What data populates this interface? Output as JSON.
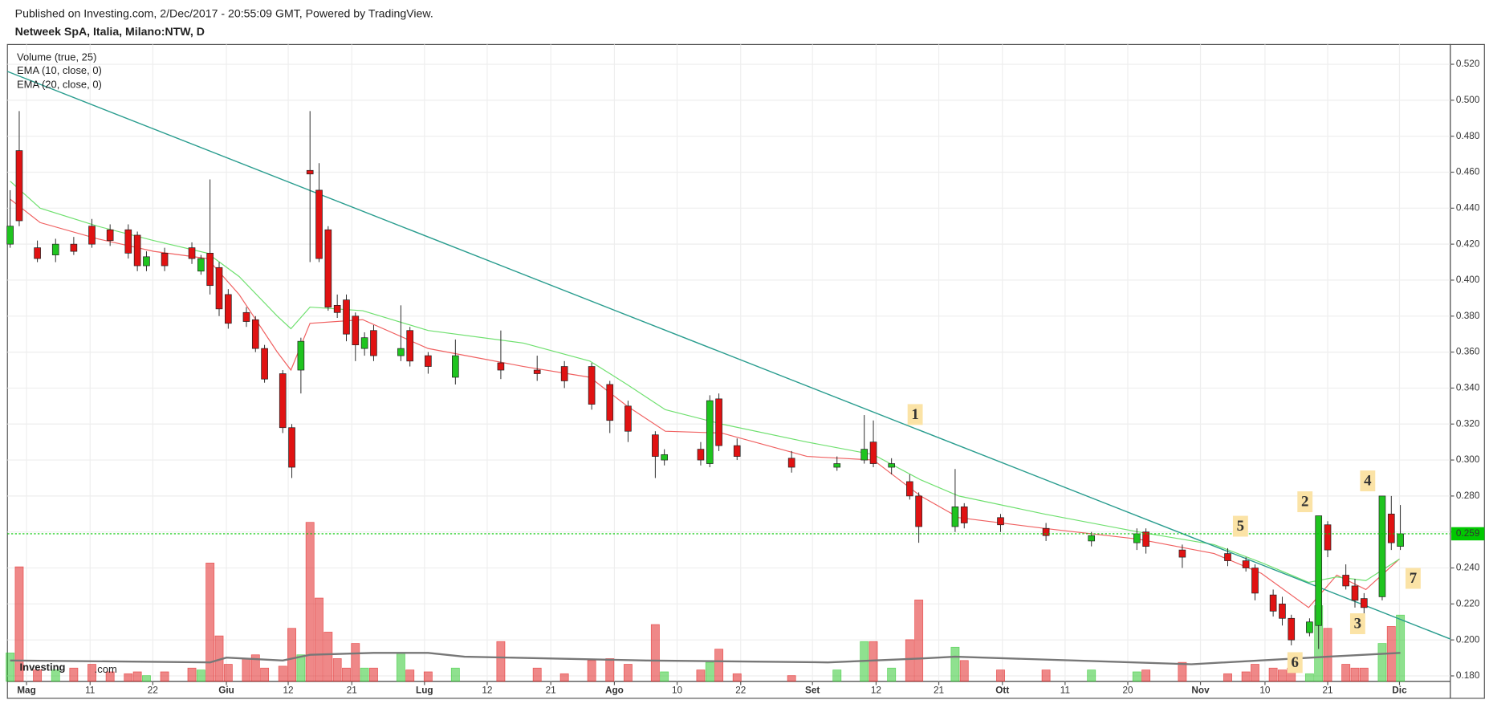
{
  "chart_data": {
    "type": "candlestick",
    "publisher_note": "Published on Investing.com, 2/Dec/2017 - 20:55:09 GMT, Powered by TradingView.",
    "title": "Netweek SpA, Italia, Milano:NTW, D",
    "logo": [
      "Investing",
      ".com"
    ],
    "up_color": "#1fc41f",
    "down_color": "#e01212",
    "grid": true,
    "xlim": [
      -0.3,
      158.5
    ],
    "ylim": [
      0.177,
      0.531
    ],
    "yticks": [
      {
        "value": 0.18,
        "label": "0.180"
      },
      {
        "value": 0.2,
        "label": "0.200"
      },
      {
        "value": 0.22,
        "label": "0.220"
      },
      {
        "value": 0.24,
        "label": "0.240"
      },
      {
        "value": 0.26,
        "label": "0.260"
      },
      {
        "value": 0.28,
        "label": "0.280"
      },
      {
        "value": 0.3,
        "label": "0.300"
      },
      {
        "value": 0.32,
        "label": "0.320"
      },
      {
        "value": 0.34,
        "label": "0.340"
      },
      {
        "value": 0.36,
        "label": "0.360"
      },
      {
        "value": 0.38,
        "label": "0.380"
      },
      {
        "value": 0.4,
        "label": "0.400"
      },
      {
        "value": 0.42,
        "label": "0.420"
      },
      {
        "value": 0.44,
        "label": "0.440"
      },
      {
        "value": 0.46,
        "label": "0.460"
      },
      {
        "value": 0.48,
        "label": "0.480"
      },
      {
        "value": 0.5,
        "label": "0.500"
      },
      {
        "value": 0.52,
        "label": "0.520"
      }
    ],
    "xticks": [
      {
        "value": 1.8,
        "label": "Mag"
      },
      {
        "value": 8.8,
        "label": "11"
      },
      {
        "value": 15.7,
        "label": "22"
      },
      {
        "value": 23.8,
        "label": "Giu"
      },
      {
        "value": 30.6,
        "label": "12"
      },
      {
        "value": 37.6,
        "label": "21"
      },
      {
        "value": 45.6,
        "label": "Lug"
      },
      {
        "value": 52.5,
        "label": "12"
      },
      {
        "value": 59.5,
        "label": "21"
      },
      {
        "value": 66.5,
        "label": "Ago"
      },
      {
        "value": 73.4,
        "label": "10"
      },
      {
        "value": 80.4,
        "label": "22"
      },
      {
        "value": 88.3,
        "label": "Set"
      },
      {
        "value": 95.3,
        "label": "12"
      },
      {
        "value": 102.2,
        "label": "21"
      },
      {
        "value": 109.2,
        "label": "Ott"
      },
      {
        "value": 116.1,
        "label": "11"
      },
      {
        "value": 123,
        "label": "20"
      },
      {
        "value": 131,
        "label": "Nov"
      },
      {
        "value": 138.1,
        "label": "10"
      },
      {
        "value": 145,
        "label": "21"
      },
      {
        "value": 152.9,
        "label": "Dic"
      }
    ],
    "x": [
      0,
      1,
      3,
      5,
      7,
      9,
      11,
      13,
      14,
      15,
      17,
      20,
      21,
      22,
      23,
      24,
      26,
      27,
      28,
      30,
      31,
      32,
      33,
      34,
      35,
      36,
      37,
      38,
      39,
      40,
      43,
      44,
      46,
      49,
      54,
      58,
      61,
      64,
      66,
      68,
      71,
      72,
      76,
      77,
      78,
      80,
      86,
      91,
      94,
      95,
      97,
      99,
      100,
      104,
      105,
      109,
      114,
      119,
      124,
      125,
      129,
      134,
      136,
      137,
      139,
      140,
      141,
      143,
      144,
      145,
      147,
      148,
      149,
      151,
      152,
      153
    ],
    "open": [
      0.42,
      0.472,
      0.418,
      0.414,
      0.42,
      0.43,
      0.428,
      0.428,
      0.425,
      0.408,
      0.415,
      0.418,
      0.405,
      0.415,
      0.407,
      0.392,
      0.382,
      0.378,
      0.362,
      0.348,
      0.318,
      0.35,
      0.461,
      0.45,
      0.428,
      0.386,
      0.389,
      0.38,
      0.362,
      0.372,
      0.358,
      0.372,
      0.358,
      0.346,
      0.354,
      0.35,
      0.352,
      0.352,
      0.342,
      0.33,
      0.314,
      0.3,
      0.306,
      0.298,
      0.334,
      0.308,
      0.301,
      0.296,
      0.3,
      0.31,
      0.296,
      0.288,
      0.28,
      0.263,
      0.274,
      0.268,
      0.262,
      0.255,
      0.254,
      0.26,
      0.25,
      0.248,
      0.244,
      0.24,
      0.225,
      0.22,
      0.212,
      0.204,
      0.208,
      0.264,
      0.236,
      0.23,
      0.223,
      0.224,
      0.27,
      0.252
    ],
    "high": [
      0.45,
      0.494,
      0.422,
      0.423,
      0.424,
      0.434,
      0.431,
      0.431,
      0.427,
      0.416,
      0.418,
      0.421,
      0.414,
      0.456,
      0.41,
      0.395,
      0.385,
      0.38,
      0.364,
      0.35,
      0.32,
      0.368,
      0.494,
      0.465,
      0.43,
      0.392,
      0.392,
      0.382,
      0.371,
      0.375,
      0.386,
      0.374,
      0.36,
      0.367,
      0.372,
      0.358,
      0.355,
      0.354,
      0.344,
      0.333,
      0.316,
      0.306,
      0.31,
      0.336,
      0.337,
      0.312,
      0.305,
      0.302,
      0.325,
      0.322,
      0.301,
      0.292,
      0.282,
      0.295,
      0.276,
      0.27,
      0.265,
      0.26,
      0.262,
      0.262,
      0.253,
      0.251,
      0.246,
      0.242,
      0.228,
      0.224,
      0.214,
      0.212,
      0.269,
      0.266,
      0.242,
      0.234,
      0.226,
      0.28,
      0.28,
      0.275
    ],
    "low": [
      0.418,
      0.43,
      0.41,
      0.41,
      0.414,
      0.418,
      0.419,
      0.412,
      0.405,
      0.405,
      0.405,
      0.409,
      0.403,
      0.392,
      0.38,
      0.373,
      0.374,
      0.36,
      0.343,
      0.315,
      0.29,
      0.337,
      0.41,
      0.41,
      0.383,
      0.379,
      0.366,
      0.355,
      0.358,
      0.355,
      0.355,
      0.352,
      0.348,
      0.342,
      0.345,
      0.344,
      0.34,
      0.328,
      0.315,
      0.31,
      0.29,
      0.297,
      0.297,
      0.296,
      0.305,
      0.3,
      0.293,
      0.294,
      0.298,
      0.296,
      0.292,
      0.278,
      0.254,
      0.26,
      0.262,
      0.26,
      0.255,
      0.252,
      0.25,
      0.248,
      0.24,
      0.241,
      0.238,
      0.222,
      0.213,
      0.208,
      0.197,
      0.202,
      0.195,
      0.246,
      0.228,
      0.218,
      0.214,
      0.222,
      0.25,
      0.25
    ],
    "close": [
      0.43,
      0.433,
      0.412,
      0.42,
      0.416,
      0.42,
      0.422,
      0.415,
      0.408,
      0.413,
      0.408,
      0.412,
      0.412,
      0.397,
      0.384,
      0.376,
      0.377,
      0.362,
      0.345,
      0.318,
      0.296,
      0.366,
      0.459,
      0.412,
      0.385,
      0.382,
      0.37,
      0.364,
      0.368,
      0.358,
      0.362,
      0.355,
      0.352,
      0.358,
      0.35,
      0.348,
      0.344,
      0.331,
      0.322,
      0.316,
      0.302,
      0.303,
      0.3,
      0.333,
      0.308,
      0.302,
      0.296,
      0.298,
      0.306,
      0.298,
      0.298,
      0.28,
      0.263,
      0.274,
      0.265,
      0.264,
      0.258,
      0.258,
      0.259,
      0.252,
      0.246,
      0.244,
      0.24,
      0.226,
      0.216,
      0.212,
      0.2,
      0.21,
      0.269,
      0.25,
      0.23,
      0.222,
      0.218,
      0.28,
      0.254,
      0.259
    ],
    "volume": {
      "name": "Volume (true, 25)",
      "lim": [
        0,
        200
      ],
      "values": [
        30,
        121,
        12,
        12,
        14,
        18,
        10,
        8,
        10,
        6,
        10,
        14,
        12,
        125,
        48,
        18,
        24,
        28,
        14,
        16,
        56,
        28,
        168,
        88,
        52,
        24,
        14,
        40,
        14,
        14,
        30,
        12,
        10,
        14,
        42,
        14,
        8,
        22,
        24,
        18,
        60,
        10,
        12,
        20,
        34,
        8,
        6,
        12,
        42,
        42,
        14,
        44,
        86,
        36,
        22,
        12,
        12,
        12,
        10,
        12,
        20,
        8,
        10,
        18,
        14,
        12,
        14,
        8,
        80,
        56,
        18,
        14,
        14,
        40,
        58,
        70
      ],
      "ma": {
        "color": "#777777",
        "x": [
          0,
          22,
          23.8,
          30,
          33,
          40,
          46,
          50,
          70,
          90,
          100,
          104,
          130,
          145,
          153
        ],
        "values": [
          22,
          20,
          25,
          22,
          28,
          30,
          30,
          26,
          22,
          20,
          24,
          26,
          18,
          26,
          30
        ]
      }
    },
    "series": [
      {
        "name": "EMA (10, close, 0)",
        "color": "#f06060",
        "x": [
          0,
          3.3,
          9.6,
          15.8,
          21.7,
          25.2,
          29.4,
          30.9,
          33,
          38.8,
          46,
          56.5,
          63.8,
          67.9,
          72.1,
          78.3,
          87.7,
          95,
          100.2,
          104.4,
          113.8,
          124.2,
          132.5,
          137.7,
          142.9,
          146,
          149.2,
          152.9
        ],
        "values": [
          0.445,
          0.432,
          0.423,
          0.416,
          0.412,
          0.392,
          0.36,
          0.35,
          0.376,
          0.378,
          0.362,
          0.352,
          0.346,
          0.33,
          0.316,
          0.315,
          0.302,
          0.3,
          0.28,
          0.268,
          0.262,
          0.256,
          0.248,
          0.237,
          0.218,
          0.236,
          0.228,
          0.245
        ]
      },
      {
        "name": "EMA (20, close, 0)",
        "color": "#6fe06f",
        "x": [
          0,
          3.3,
          9.6,
          15.8,
          21.7,
          25.2,
          29.4,
          30.9,
          33,
          38.8,
          46,
          56.5,
          63.8,
          67.9,
          72.1,
          78.3,
          87.7,
          95,
          100.2,
          104.4,
          113.8,
          124.2,
          132.5,
          137.7,
          142.9,
          146,
          149.2,
          152.9
        ],
        "values": [
          0.455,
          0.44,
          0.43,
          0.422,
          0.415,
          0.402,
          0.38,
          0.373,
          0.385,
          0.383,
          0.372,
          0.365,
          0.355,
          0.342,
          0.328,
          0.32,
          0.31,
          0.303,
          0.289,
          0.28,
          0.27,
          0.26,
          0.253,
          0.243,
          0.232,
          0.235,
          0.233,
          0.245
        ]
      }
    ],
    "trendline": {
      "color": "#2a9d8f",
      "x": [
        -0.3,
        158.5
      ],
      "values": [
        0.516,
        0.2005
      ]
    },
    "last_price": {
      "value": 0.259,
      "label": "0.259",
      "color": "#00c800"
    },
    "annotations": [
      {
        "text": "1",
        "x": 99.6,
        "y": 0.3253
      },
      {
        "text": "2",
        "x": 142.5,
        "y": 0.2768
      },
      {
        "text": "3",
        "x": 148.3,
        "y": 0.209
      },
      {
        "text": "4",
        "x": 149.4,
        "y": 0.2884
      },
      {
        "text": "5",
        "x": 135.4,
        "y": 0.2632
      },
      {
        "text": "6",
        "x": 141.4,
        "y": 0.1874
      },
      {
        "text": "7",
        "x": 154.4,
        "y": 0.2342
      }
    ]
  }
}
